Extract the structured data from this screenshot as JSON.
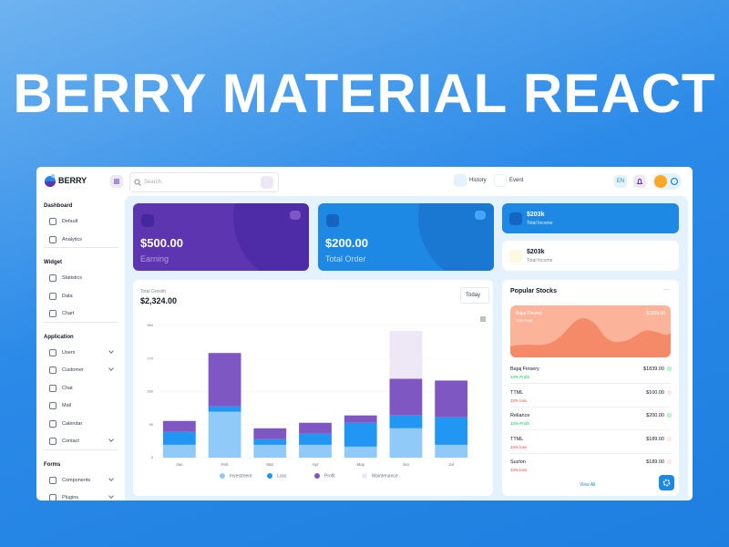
{
  "hero": {
    "title": "BERRY MATERIAL REACT"
  },
  "header": {
    "brand": "BERRY",
    "search": "Search",
    "history": "History",
    "event": "Event",
    "language": "EN"
  },
  "sidebar": [
    {
      "title": "Dashboard",
      "items": [
        {
          "label": "Default"
        },
        {
          "label": "Analytics"
        }
      ]
    },
    {
      "title": "Widget",
      "items": [
        {
          "label": "Statistics"
        },
        {
          "label": "Data"
        },
        {
          "label": "Chart"
        }
      ]
    },
    {
      "title": "Application",
      "items": [
        {
          "label": "Users",
          "submenu": true
        },
        {
          "label": "Customer",
          "submenu": true
        },
        {
          "label": "Chat"
        },
        {
          "label": "Mail"
        },
        {
          "label": "Calendar"
        },
        {
          "label": "Contact",
          "submenu": true
        }
      ]
    },
    {
      "title": "Forms",
      "items": [
        {
          "label": "Components",
          "submenu": true
        },
        {
          "label": "Plugins",
          "submenu": true
        }
      ]
    }
  ],
  "cards": {
    "earning": {
      "value": "$500.00",
      "label": "Earning"
    },
    "order": {
      "value": "$200.00",
      "label": "Total Order"
    },
    "income_primary": {
      "value": "$203k",
      "label": "Total Income"
    },
    "income_secondary": {
      "value": "$203k",
      "label": "Total Income"
    }
  },
  "growth": {
    "title": "Total Growth",
    "value": "$2,324.00",
    "period": "Today"
  },
  "chart_data": {
    "type": "bar",
    "stacked": true,
    "grid": true,
    "categories": [
      "Jan",
      "Feb",
      "Mar",
      "Apr",
      "May",
      "Jun",
      "Jul"
    ],
    "series": [
      {
        "name": "Investment",
        "color": "#90caf9",
        "values": [
          35,
          125,
          35,
          35,
          30,
          80,
          35
        ]
      },
      {
        "name": "Loss",
        "color": "#2196f3",
        "values": [
          35,
          15,
          15,
          30,
          65,
          35,
          75
        ]
      },
      {
        "name": "Profit",
        "color": "#7e57c2",
        "values": [
          30,
          145,
          30,
          30,
          20,
          100,
          100
        ]
      },
      {
        "name": "Maintenance",
        "color": "#ede7f6",
        "values": [
          0,
          0,
          0,
          0,
          0,
          130,
          0
        ]
      }
    ],
    "ylim": [
      0,
      360
    ],
    "yticks": [
      0,
      90,
      180,
      270,
      360
    ]
  },
  "stocks": {
    "title": "Popular Stocks",
    "featured": {
      "name": "Bajaj Finsery",
      "change": "10% Profit",
      "price": "$1839.00"
    },
    "rows": [
      {
        "name": "Bajaj Finsery",
        "price": "$1839.00",
        "change": "10% Profit",
        "up": true
      },
      {
        "name": "TTML",
        "price": "$100.00",
        "change": "10% loss",
        "up": false
      },
      {
        "name": "Reliance",
        "price": "$200.00",
        "change": "10% Profit",
        "up": true
      },
      {
        "name": "TTML",
        "price": "$189.00",
        "change": "10% loss",
        "up": false
      },
      {
        "name": "Suzlon",
        "price": "$189.00",
        "change": "10% loss",
        "up": false
      }
    ],
    "more": "View All"
  }
}
